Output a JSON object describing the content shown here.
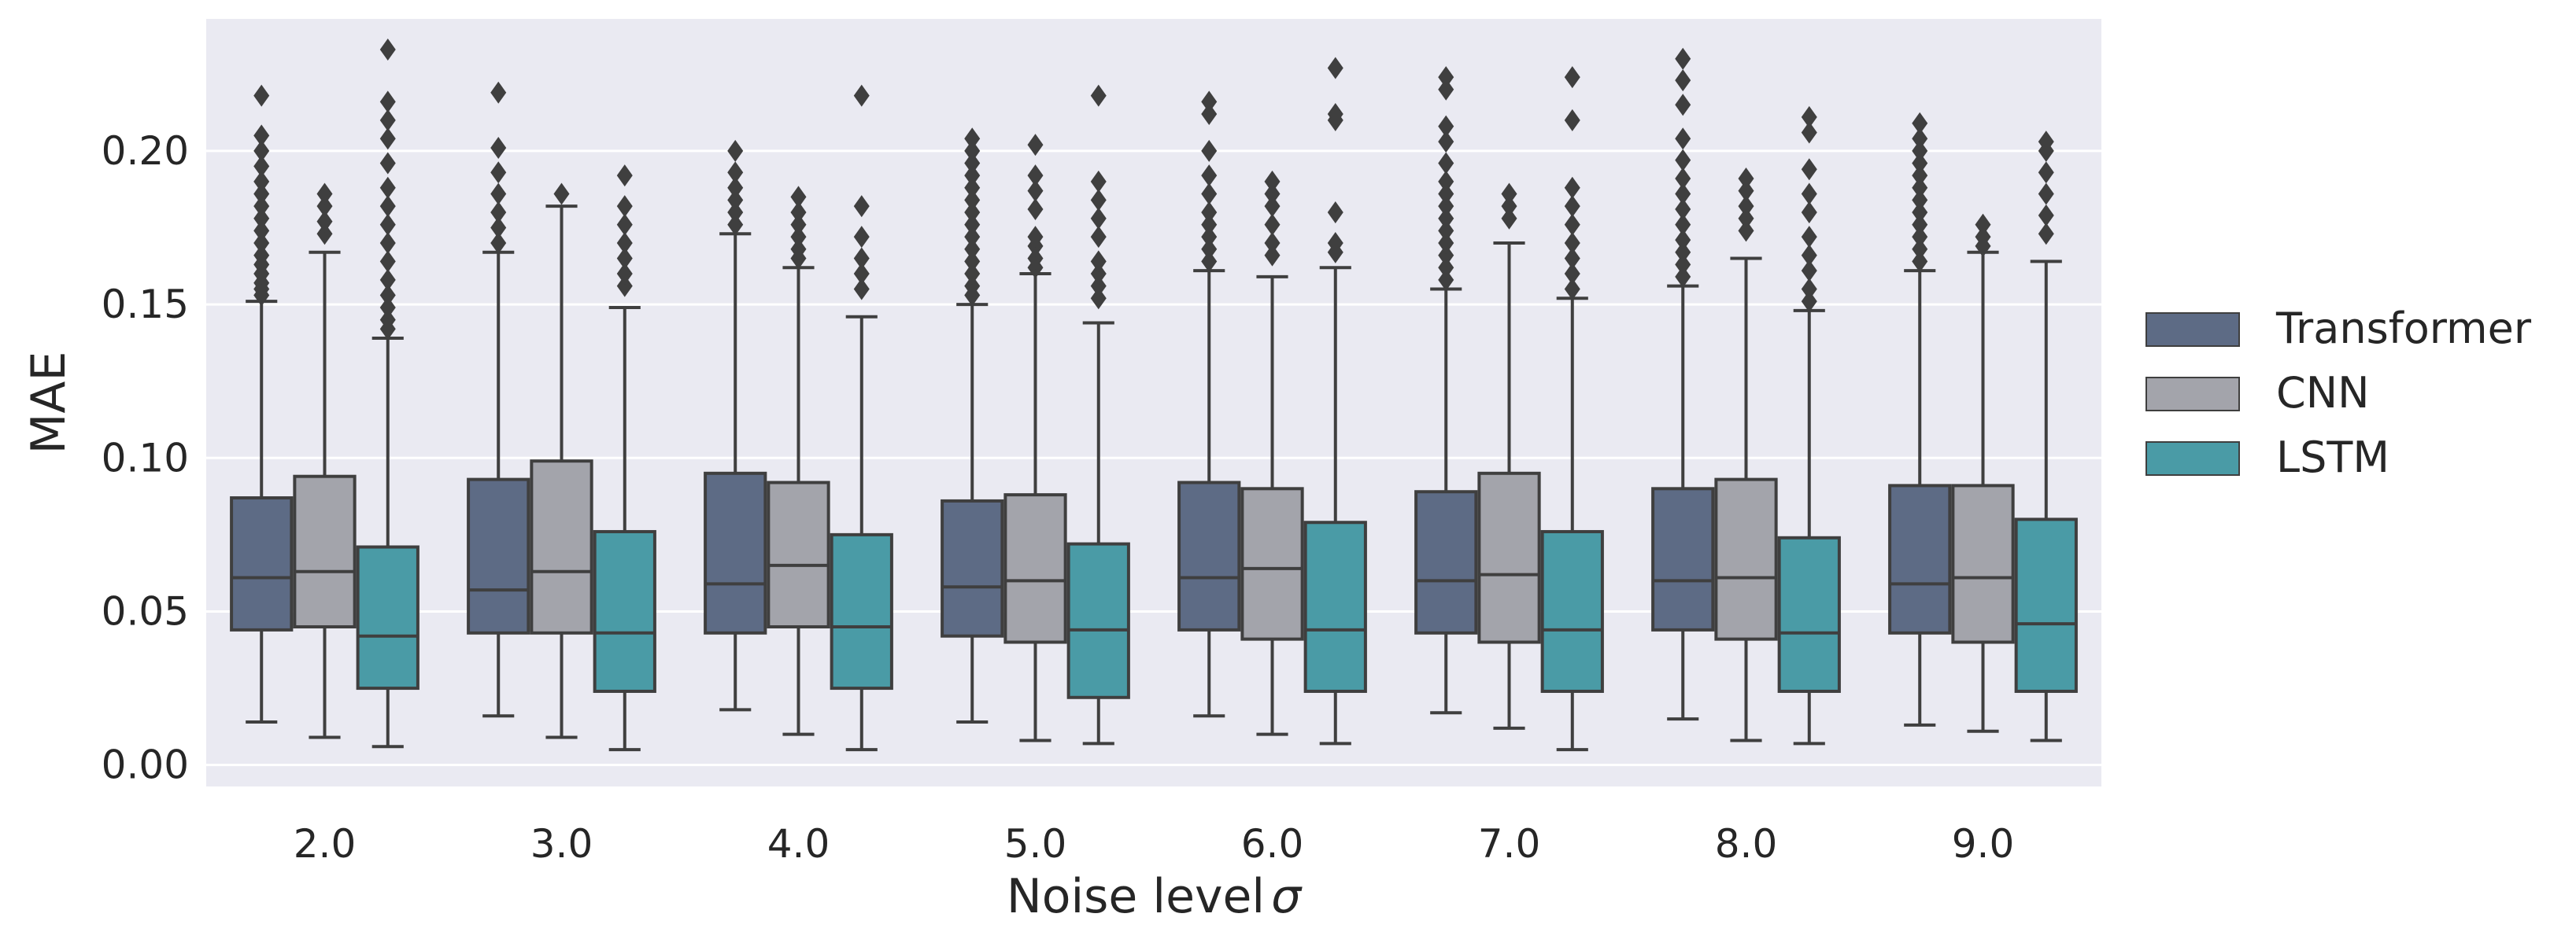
{
  "chart_data": {
    "type": "boxplot",
    "title": "",
    "xlabel": "Noise level",
    "xlabel_symbol": "σ",
    "ylabel": "MAE",
    "ylim": [
      -0.007,
      0.243
    ],
    "yticks": [
      0.0,
      0.05,
      0.1,
      0.15,
      0.2
    ],
    "ytick_labels": [
      "0.00",
      "0.05",
      "0.10",
      "0.15",
      "0.20"
    ],
    "categories": [
      "2.0",
      "3.0",
      "4.0",
      "5.0",
      "6.0",
      "7.0",
      "8.0",
      "9.0"
    ],
    "grid": true,
    "legend_position": "right",
    "series": [
      {
        "name": "Transformer",
        "color": "#5d6b85",
        "boxes": [
          {
            "whislo": 0.014,
            "q1": 0.044,
            "med": 0.061,
            "q3": 0.087,
            "whishi": 0.151,
            "fliers": [
              0.153,
              0.155,
              0.157,
              0.16,
              0.163,
              0.166,
              0.17,
              0.174,
              0.178,
              0.182,
              0.186,
              0.19,
              0.195,
              0.2,
              0.205,
              0.218
            ]
          },
          {
            "whislo": 0.016,
            "q1": 0.043,
            "med": 0.057,
            "q3": 0.093,
            "whishi": 0.167,
            "fliers": [
              0.17,
              0.175,
              0.18,
              0.186,
              0.193,
              0.201,
              0.219
            ]
          },
          {
            "whislo": 0.018,
            "q1": 0.043,
            "med": 0.059,
            "q3": 0.095,
            "whishi": 0.173,
            "fliers": [
              0.176,
              0.18,
              0.184,
              0.188,
              0.193,
              0.2
            ]
          },
          {
            "whislo": 0.014,
            "q1": 0.042,
            "med": 0.058,
            "q3": 0.086,
            "whishi": 0.15,
            "fliers": [
              0.153,
              0.156,
              0.16,
              0.164,
              0.168,
              0.172,
              0.176,
              0.18,
              0.184,
              0.188,
              0.192,
              0.196,
              0.2,
              0.204
            ]
          },
          {
            "whislo": 0.016,
            "q1": 0.044,
            "med": 0.061,
            "q3": 0.092,
            "whishi": 0.161,
            "fliers": [
              0.164,
              0.168,
              0.172,
              0.176,
              0.18,
              0.186,
              0.192,
              0.2,
              0.212,
              0.216
            ]
          },
          {
            "whislo": 0.017,
            "q1": 0.043,
            "med": 0.06,
            "q3": 0.089,
            "whishi": 0.155,
            "fliers": [
              0.158,
              0.162,
              0.166,
              0.17,
              0.174,
              0.178,
              0.182,
              0.186,
              0.19,
              0.196,
              0.203,
              0.208,
              0.22,
              0.224
            ]
          },
          {
            "whislo": 0.015,
            "q1": 0.044,
            "med": 0.06,
            "q3": 0.09,
            "whishi": 0.156,
            "fliers": [
              0.159,
              0.163,
              0.167,
              0.171,
              0.176,
              0.181,
              0.186,
              0.191,
              0.197,
              0.204,
              0.215,
              0.223,
              0.23
            ]
          },
          {
            "whislo": 0.013,
            "q1": 0.043,
            "med": 0.059,
            "q3": 0.091,
            "whishi": 0.161,
            "fliers": [
              0.164,
              0.168,
              0.172,
              0.176,
              0.18,
              0.184,
              0.188,
              0.192,
              0.196,
              0.2,
              0.204,
              0.209
            ]
          }
        ]
      },
      {
        "name": "CNN",
        "color": "#a3a4ab",
        "boxes": [
          {
            "whislo": 0.009,
            "q1": 0.045,
            "med": 0.063,
            "q3": 0.094,
            "whishi": 0.167,
            "fliers": [
              0.173,
              0.177,
              0.182,
              0.186
            ]
          },
          {
            "whislo": 0.009,
            "q1": 0.043,
            "med": 0.063,
            "q3": 0.099,
            "whishi": 0.182,
            "fliers": [
              0.186
            ]
          },
          {
            "whislo": 0.01,
            "q1": 0.045,
            "med": 0.065,
            "q3": 0.092,
            "whishi": 0.162,
            "fliers": [
              0.165,
              0.168,
              0.172,
              0.176,
              0.18,
              0.185
            ]
          },
          {
            "whislo": 0.008,
            "q1": 0.04,
            "med": 0.06,
            "q3": 0.088,
            "whishi": 0.16,
            "fliers": [
              0.162,
              0.165,
              0.169,
              0.172,
              0.181,
              0.187,
              0.192,
              0.202
            ]
          },
          {
            "whislo": 0.01,
            "q1": 0.041,
            "med": 0.064,
            "q3": 0.09,
            "whishi": 0.159,
            "fliers": [
              0.166,
              0.17,
              0.176,
              0.182,
              0.186,
              0.19
            ]
          },
          {
            "whislo": 0.012,
            "q1": 0.04,
            "med": 0.062,
            "q3": 0.095,
            "whishi": 0.17,
            "fliers": [
              0.178,
              0.182,
              0.186
            ]
          },
          {
            "whislo": 0.008,
            "q1": 0.041,
            "med": 0.061,
            "q3": 0.093,
            "whishi": 0.165,
            "fliers": [
              0.174,
              0.178,
              0.182,
              0.187,
              0.191
            ]
          },
          {
            "whislo": 0.011,
            "q1": 0.04,
            "med": 0.061,
            "q3": 0.091,
            "whishi": 0.167,
            "fliers": [
              0.169,
              0.172,
              0.176
            ]
          }
        ]
      },
      {
        "name": "LSTM",
        "color": "#4a9ba6",
        "boxes": [
          {
            "whislo": 0.006,
            "q1": 0.025,
            "med": 0.042,
            "q3": 0.071,
            "whishi": 0.139,
            "fliers": [
              0.142,
              0.145,
              0.149,
              0.153,
              0.158,
              0.164,
              0.17,
              0.176,
              0.182,
              0.188,
              0.196,
              0.204,
              0.21,
              0.216,
              0.233
            ]
          },
          {
            "whislo": 0.005,
            "q1": 0.024,
            "med": 0.043,
            "q3": 0.076,
            "whishi": 0.149,
            "fliers": [
              0.156,
              0.16,
              0.165,
              0.17,
              0.176,
              0.182,
              0.192
            ]
          },
          {
            "whislo": 0.005,
            "q1": 0.025,
            "med": 0.045,
            "q3": 0.075,
            "whishi": 0.146,
            "fliers": [
              0.155,
              0.16,
              0.165,
              0.172,
              0.182,
              0.218
            ]
          },
          {
            "whislo": 0.007,
            "q1": 0.022,
            "med": 0.044,
            "q3": 0.072,
            "whishi": 0.144,
            "fliers": [
              0.152,
              0.156,
              0.16,
              0.164,
              0.172,
              0.178,
              0.184,
              0.19,
              0.218
            ]
          },
          {
            "whislo": 0.007,
            "q1": 0.024,
            "med": 0.044,
            "q3": 0.079,
            "whishi": 0.162,
            "fliers": [
              0.167,
              0.17,
              0.18,
              0.21,
              0.212,
              0.227
            ]
          },
          {
            "whislo": 0.005,
            "q1": 0.024,
            "med": 0.044,
            "q3": 0.076,
            "whishi": 0.152,
            "fliers": [
              0.155,
              0.16,
              0.165,
              0.17,
              0.176,
              0.182,
              0.188,
              0.21,
              0.224
            ]
          },
          {
            "whislo": 0.007,
            "q1": 0.024,
            "med": 0.043,
            "q3": 0.074,
            "whishi": 0.148,
            "fliers": [
              0.151,
              0.155,
              0.161,
              0.166,
              0.172,
              0.18,
              0.186,
              0.194,
              0.206,
              0.211
            ]
          },
          {
            "whislo": 0.008,
            "q1": 0.024,
            "med": 0.046,
            "q3": 0.08,
            "whishi": 0.164,
            "fliers": [
              0.173,
              0.179,
              0.186,
              0.193,
              0.2,
              0.203
            ]
          }
        ]
      }
    ]
  },
  "colors": {
    "plot_background": "#eaeaf2",
    "grid": "#ffffff",
    "box_edge": "#3f3f3f"
  }
}
